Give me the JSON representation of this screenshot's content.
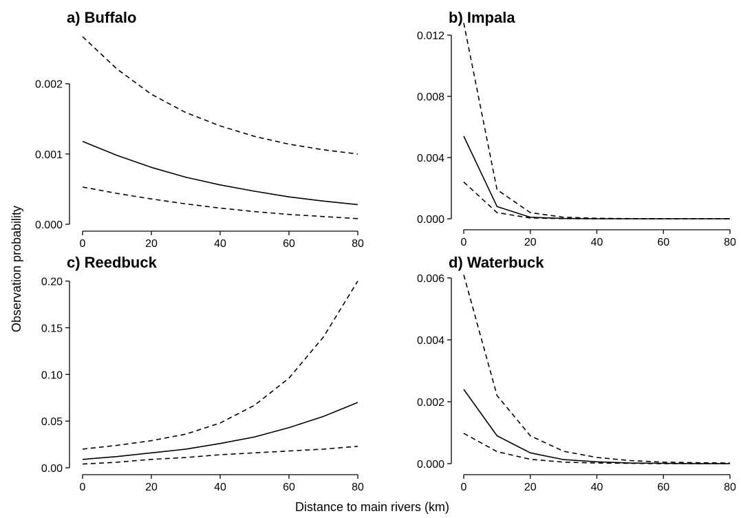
{
  "figure": {
    "ylabel": "Observation probability",
    "xlabel": "Distance to main rivers (km)"
  },
  "chart_data": [
    {
      "type": "line",
      "title": "a) Buffalo",
      "x": [
        0,
        10,
        20,
        30,
        40,
        50,
        60,
        70,
        80
      ],
      "xlim": [
        0,
        80
      ],
      "xticks": [
        0,
        20,
        40,
        60,
        80
      ],
      "xtick_labels": [
        "0",
        "20",
        "40",
        "60",
        "80"
      ],
      "ylim": [
        0,
        0.0028
      ],
      "yticks": [
        0,
        0.001,
        0.002
      ],
      "ytick_labels": [
        "0.000",
        "0.001",
        "0.002"
      ],
      "series": [
        {
          "role": "upper",
          "style": "dashed",
          "values": [
            0.00267,
            0.00221,
            0.00185,
            0.00159,
            0.0014,
            0.00125,
            0.00114,
            0.00106,
            0.001
          ]
        },
        {
          "role": "estimate",
          "style": "solid",
          "values": [
            0.00118,
            0.00098,
            0.00081,
            0.00067,
            0.00056,
            0.00047,
            0.00039,
            0.00033,
            0.00028
          ]
        },
        {
          "role": "lower",
          "style": "dashed",
          "values": [
            0.00053,
            0.00044,
            0.00036,
            0.00029,
            0.00023,
            0.00018,
            0.00014,
            0.00011,
            8e-05
          ]
        }
      ]
    },
    {
      "type": "line",
      "title": "b) Impala",
      "x": [
        0,
        10,
        20,
        30,
        40,
        50,
        60,
        70,
        80
      ],
      "xlim": [
        0,
        80
      ],
      "xticks": [
        0,
        20,
        40,
        60,
        80
      ],
      "xtick_labels": [
        "0",
        "20",
        "40",
        "60",
        "80"
      ],
      "ylim": [
        0,
        0.0125
      ],
      "yticks": [
        0,
        0.004,
        0.008,
        0.012
      ],
      "ytick_labels": [
        "0.000",
        "0.004",
        "0.008",
        "0.012"
      ],
      "series": [
        {
          "role": "upper",
          "style": "dashed",
          "values": [
            0.0128,
            0.0019,
            0.0004,
            0.0001,
            3e-05,
            1e-05,
            0,
            0,
            0
          ]
        },
        {
          "role": "estimate",
          "style": "solid",
          "values": [
            0.0054,
            0.0008,
            0.0001,
            2e-05,
            0,
            0,
            0,
            0,
            0
          ]
        },
        {
          "role": "lower",
          "style": "dashed",
          "values": [
            0.0024,
            0.0004,
            5e-05,
            1e-05,
            0,
            0,
            0,
            0,
            0
          ]
        }
      ]
    },
    {
      "type": "line",
      "title": "c) Reedbuck",
      "x": [
        0,
        10,
        20,
        30,
        40,
        50,
        60,
        70,
        80
      ],
      "xlim": [
        0,
        80
      ],
      "xticks": [
        0,
        20,
        40,
        60,
        80
      ],
      "xtick_labels": [
        "0",
        "20",
        "40",
        "60",
        "80"
      ],
      "ylim": [
        0,
        0.21
      ],
      "yticks": [
        0,
        0.05,
        0.1,
        0.15,
        0.2
      ],
      "ytick_labels": [
        "0.00",
        "0.05",
        "0.10",
        "0.15",
        "0.20"
      ],
      "series": [
        {
          "role": "upper",
          "style": "dashed",
          "values": [
            0.02,
            0.024,
            0.029,
            0.036,
            0.048,
            0.067,
            0.096,
            0.14,
            0.2
          ]
        },
        {
          "role": "estimate",
          "style": "solid",
          "values": [
            0.009,
            0.012,
            0.016,
            0.02,
            0.026,
            0.033,
            0.043,
            0.055,
            0.07
          ]
        },
        {
          "role": "lower",
          "style": "dashed",
          "values": [
            0.004,
            0.006,
            0.009,
            0.011,
            0.014,
            0.016,
            0.018,
            0.02,
            0.023
          ]
        }
      ]
    },
    {
      "type": "line",
      "title": "d) Waterbuck",
      "x": [
        0,
        10,
        20,
        30,
        40,
        50,
        60,
        70,
        80
      ],
      "xlim": [
        0,
        80
      ],
      "xticks": [
        0,
        20,
        40,
        60,
        80
      ],
      "xtick_labels": [
        "0",
        "20",
        "40",
        "60",
        "80"
      ],
      "ylim": [
        0,
        0.0062
      ],
      "yticks": [
        0,
        0.002,
        0.004,
        0.006
      ],
      "ytick_labels": [
        "0.000",
        "0.002",
        "0.004",
        "0.006"
      ],
      "series": [
        {
          "role": "upper",
          "style": "dashed",
          "values": [
            0.0061,
            0.0022,
            0.0009,
            0.0004,
            0.0002,
            0.0001,
            5e-05,
            3e-05,
            2e-05
          ]
        },
        {
          "role": "estimate",
          "style": "solid",
          "values": [
            0.0024,
            0.0009,
            0.00035,
            0.00013,
            6e-05,
            2e-05,
            1e-05,
            0,
            0
          ]
        },
        {
          "role": "lower",
          "style": "dashed",
          "values": [
            0.00098,
            0.00039,
            0.00014,
            5e-05,
            2e-05,
            1e-05,
            0,
            0,
            0
          ]
        }
      ]
    }
  ]
}
